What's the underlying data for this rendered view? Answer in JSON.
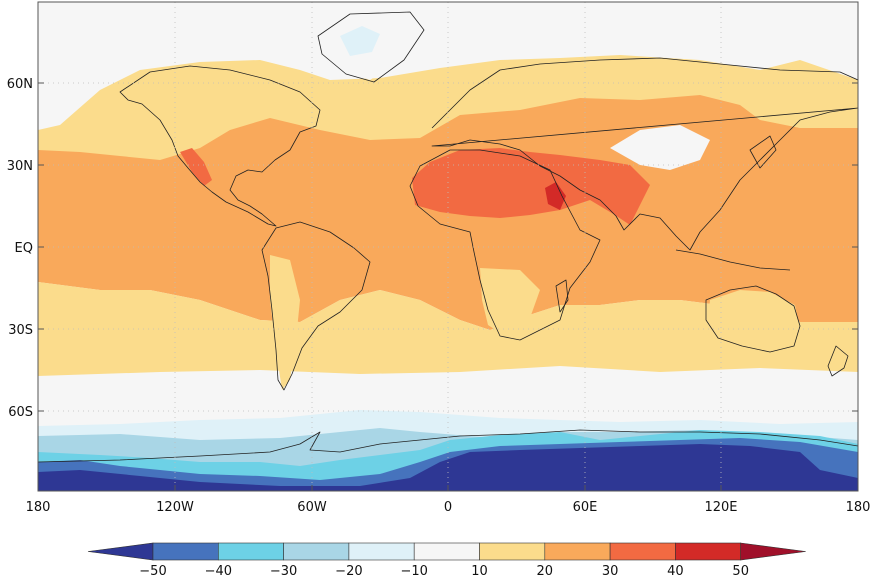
{
  "map": {
    "y_axis_labels": [
      "60N",
      "30N",
      "EQ",
      "30S",
      "60S"
    ],
    "x_axis_labels": [
      "180",
      "120W",
      "60W",
      "0",
      "60E",
      "120E",
      "180"
    ]
  },
  "colorbar": {
    "labels": [
      "−50",
      "−40",
      "−30",
      "−20",
      "−10",
      "10",
      "20",
      "30",
      "40",
      "50"
    ],
    "colors": [
      "#2e3794",
      "#4673bd",
      "#6dd1e6",
      "#a9d6e6",
      "#dff1f8",
      "#f6f6f6",
      "#fbdc8c",
      "#f9a95b",
      "#f26a42",
      "#d32a27",
      "#a0102a"
    ]
  },
  "palette": {
    "ocean_background": "#f6f6f6",
    "warm_light": "#fbdc8c",
    "warm_mid": "#f9a95b",
    "hot": "#f26a42",
    "very_hot": "#d32a27",
    "cold_1": "#dff1f8",
    "cold_2": "#a9d6e6",
    "cold_3": "#6dd1e6",
    "cold_4": "#4673bd",
    "cold_5": "#2e3794",
    "coastline": "#222222",
    "grid": "#bdbdbd"
  }
}
